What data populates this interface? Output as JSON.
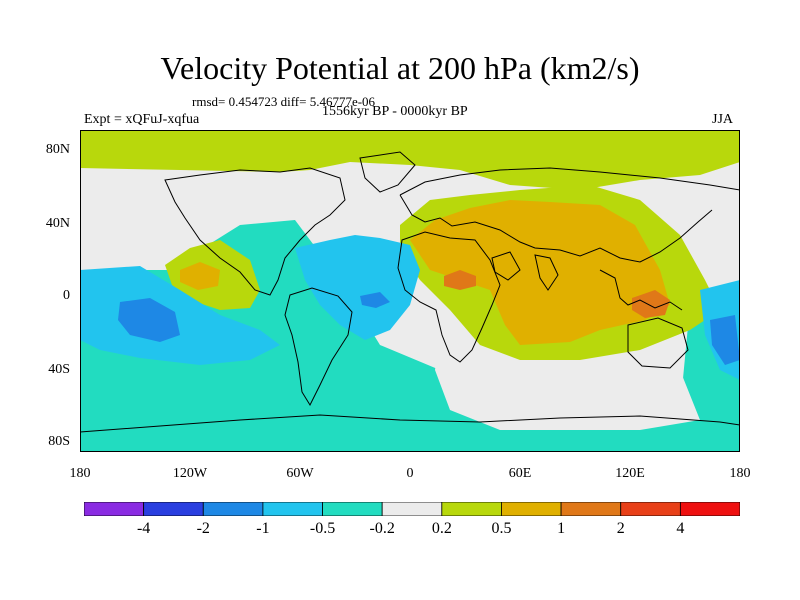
{
  "title": "Velocity Potential at 200 hPa (km2/s)",
  "stats": "rmsd= 0.454723 diff= 5.46777e-06",
  "period": "1556kyr BP - 0000kyr BP",
  "experiment": "Expt = xQFuJ-xqfua",
  "season": "JJA",
  "y_axis_labels": [
    "80N",
    "40N",
    "0",
    "40S",
    "80S"
  ],
  "x_axis_labels": [
    "180",
    "120W",
    "60W",
    "0",
    "60E",
    "120E",
    "180"
  ],
  "colorbar": {
    "labels": [
      "-4",
      "-2",
      "-1",
      "-0.5",
      "-0.2",
      "0.2",
      "0.5",
      "1",
      "2",
      "4"
    ],
    "colors": [
      "#8a2be2",
      "#2a3fe0",
      "#1e88e5",
      "#22c4ee",
      "#22dcc0",
      "#ececec",
      "#b8d80c",
      "#e0b000",
      "#e07818",
      "#e84018",
      "#ee1010"
    ]
  }
}
